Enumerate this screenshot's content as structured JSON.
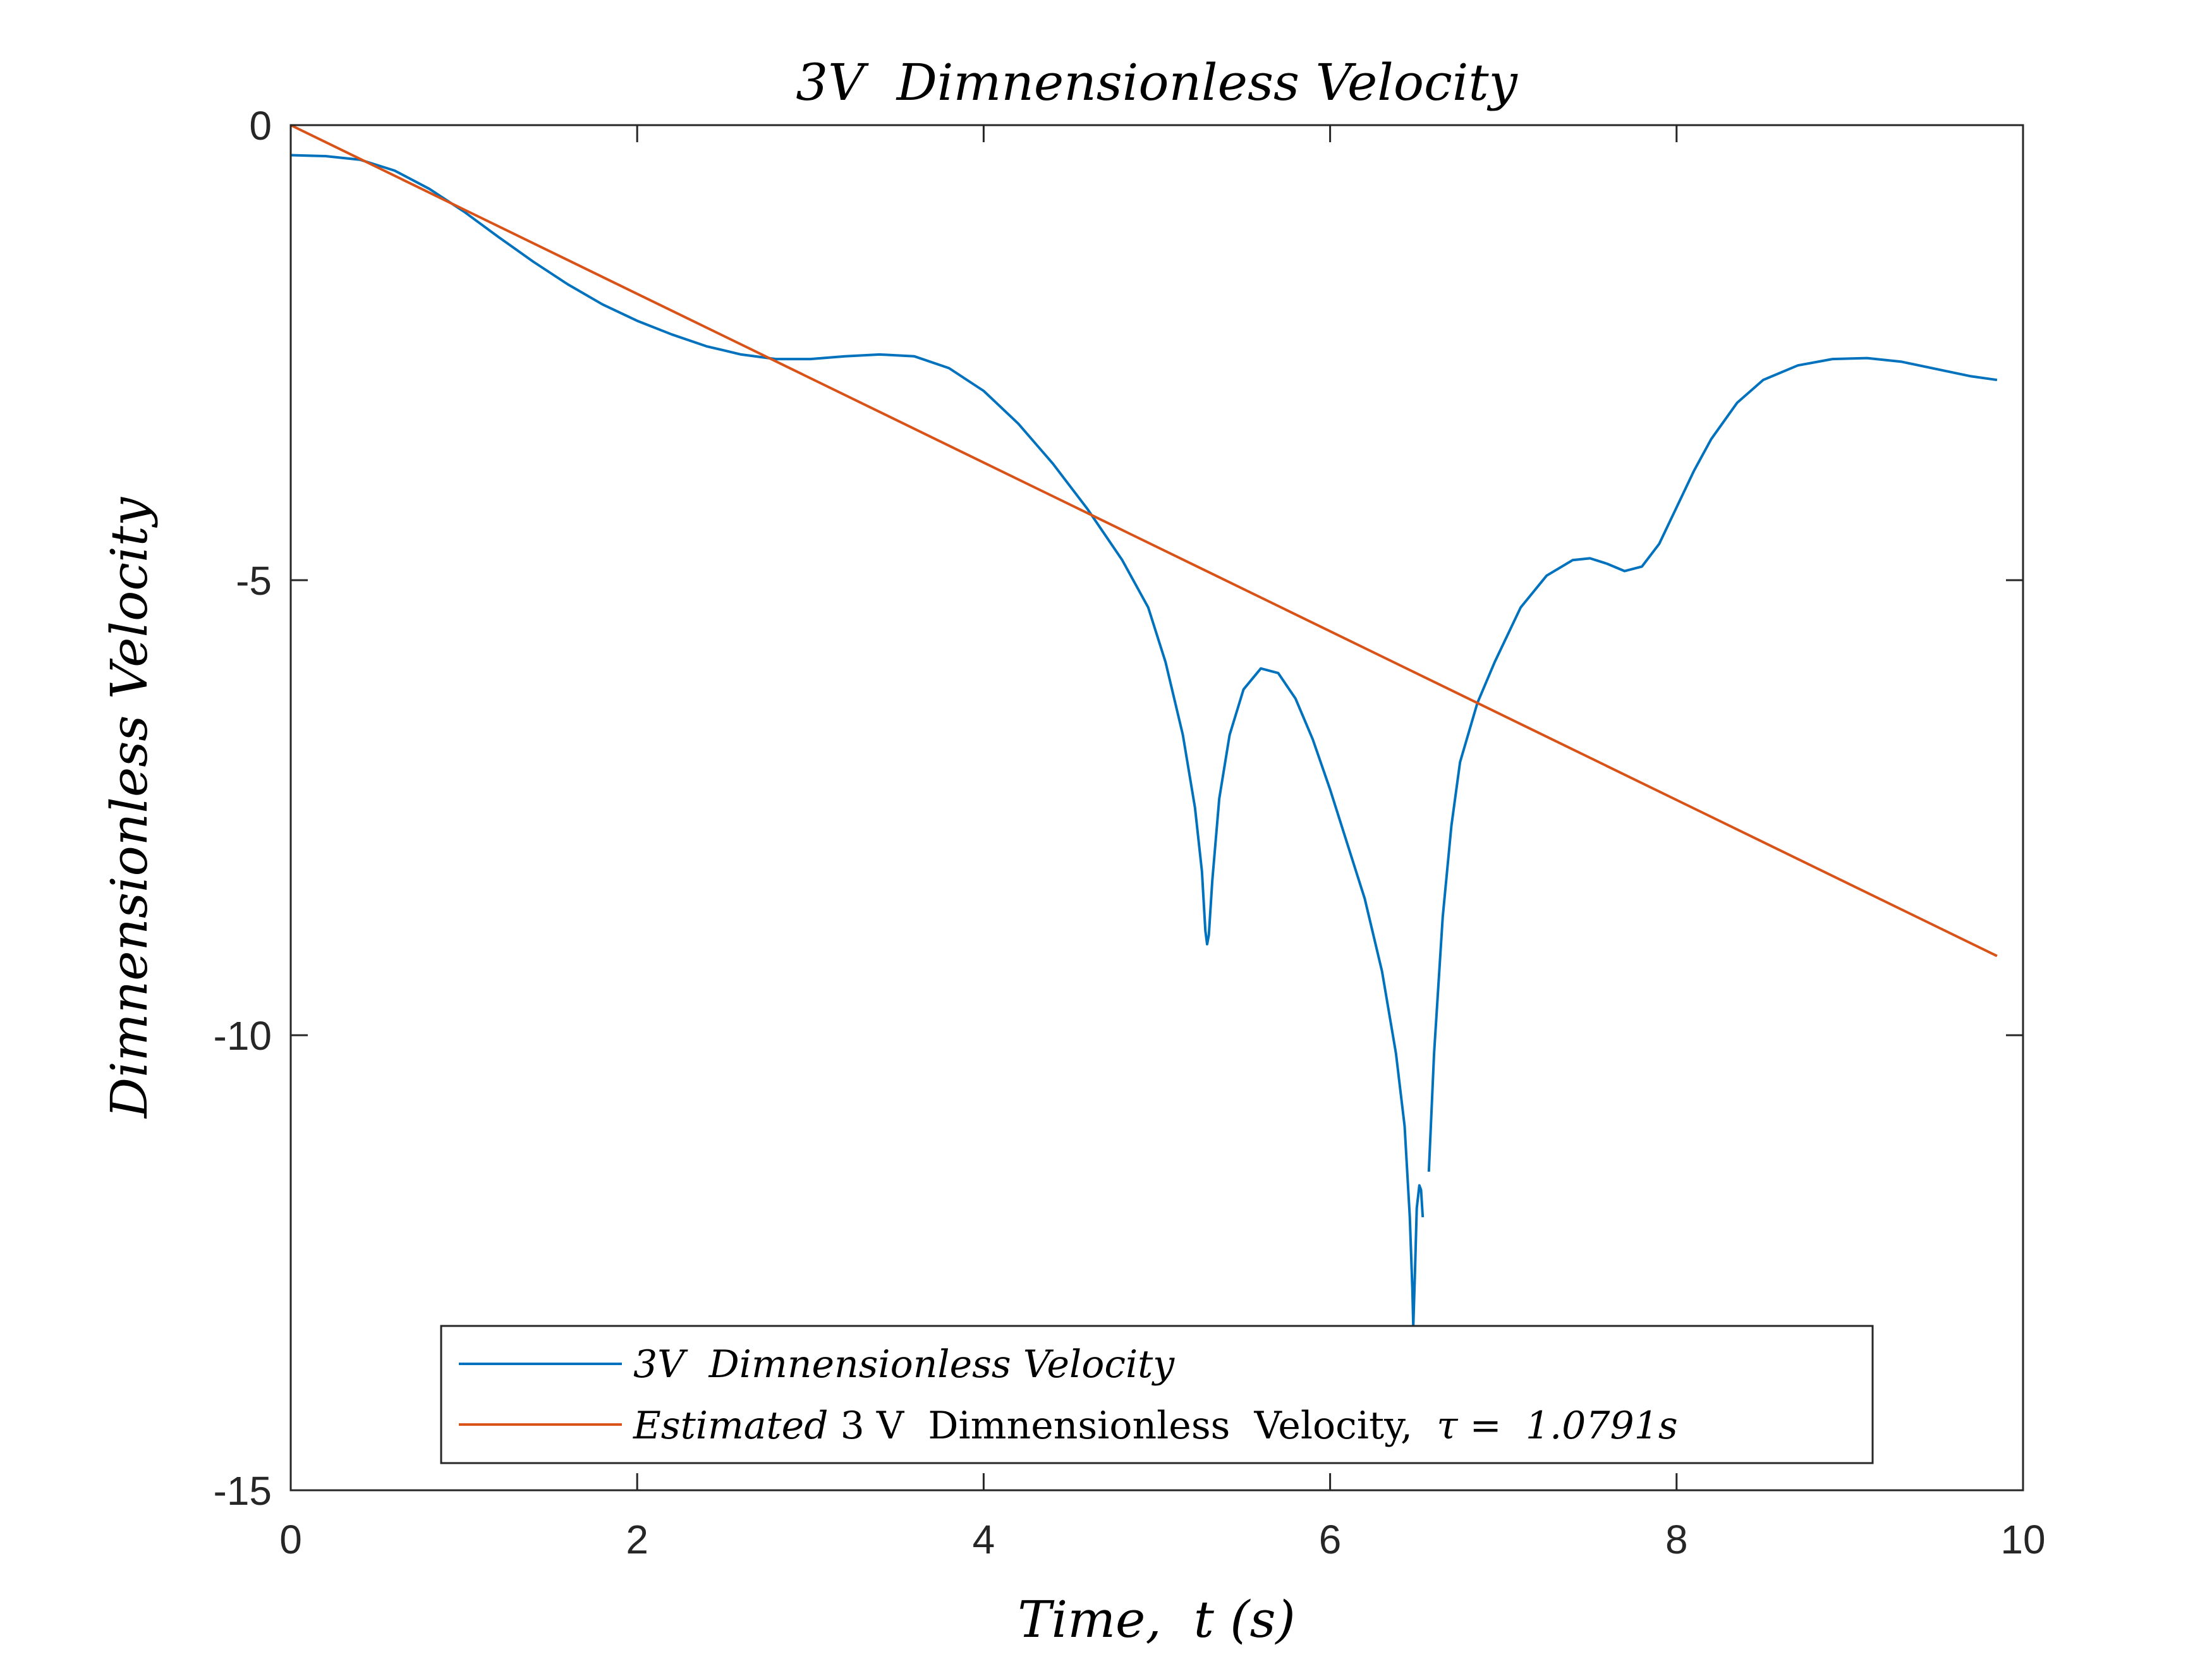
{
  "chart_data": {
    "type": "line",
    "title": "3V  Dimnensionless Velocity",
    "xlabel": "Time,  t (s)",
    "ylabel": "Dimnensionless Velocity",
    "xlim": [
      0,
      10
    ],
    "ylim": [
      -15,
      0
    ],
    "xticks": [
      "0",
      "2",
      "4",
      "6",
      "8",
      "10"
    ],
    "yticks": [
      "0",
      "-5",
      "-10",
      "-15"
    ],
    "grid": false,
    "legend_position": "bottom-center",
    "legend": {
      "entry1": "3V  Dimnensionless Velocity",
      "entry2_italic": "Estimated",
      "entry2_text": " 3 V  Dimnensionless  Velocity,  ",
      "entry2_tau": "τ =  1.0791",
      "entry2_unit": "s"
    },
    "series": [
      {
        "name": "3V  Dimnensionless Velocity",
        "color": "#0072BD",
        "segments": [
          [
            [
              0,
              -0.33
            ],
            [
              0.2,
              -0.34
            ],
            [
              0.4,
              -0.38
            ],
            [
              0.6,
              -0.5
            ],
            [
              0.8,
              -0.7
            ],
            [
              1.0,
              -0.95
            ],
            [
              1.2,
              -1.23
            ],
            [
              1.4,
              -1.5
            ],
            [
              1.6,
              -1.75
            ],
            [
              1.8,
              -1.97
            ],
            [
              2.0,
              -2.15
            ],
            [
              2.2,
              -2.3
            ],
            [
              2.4,
              -2.43
            ],
            [
              2.6,
              -2.52
            ],
            [
              2.8,
              -2.57
            ],
            [
              3.0,
              -2.57
            ],
            [
              3.2,
              -2.54
            ],
            [
              3.4,
              -2.52
            ],
            [
              3.6,
              -2.54
            ],
            [
              3.8,
              -2.67
            ],
            [
              4.0,
              -2.92
            ],
            [
              4.2,
              -3.28
            ],
            [
              4.4,
              -3.72
            ],
            [
              4.6,
              -4.22
            ],
            [
              4.8,
              -4.78
            ],
            [
              4.95,
              -5.3
            ],
            [
              5.05,
              -5.9
            ],
            [
              5.15,
              -6.7
            ],
            [
              5.22,
              -7.5
            ],
            [
              5.26,
              -8.2
            ],
            [
              5.28,
              -8.85
            ],
            [
              5.29,
              -9.0
            ],
            [
              5.3,
              -8.9
            ],
            [
              5.32,
              -8.3
            ],
            [
              5.36,
              -7.4
            ],
            [
              5.42,
              -6.7
            ],
            [
              5.5,
              -6.2
            ],
            [
              5.6,
              -5.97
            ],
            [
              5.7,
              -6.02
            ],
            [
              5.8,
              -6.3
            ],
            [
              5.9,
              -6.75
            ],
            [
              6.0,
              -7.3
            ],
            [
              6.1,
              -7.9
            ],
            [
              6.2,
              -8.5
            ],
            [
              6.3,
              -9.3
            ],
            [
              6.38,
              -10.2
            ],
            [
              6.43,
              -11.0
            ],
            [
              6.46,
              -12.0
            ],
            [
              6.475,
              -12.8
            ],
            [
              6.48,
              -13.2
            ],
            [
              6.49,
              -12.6
            ],
            [
              6.5,
              -11.9
            ],
            [
              6.515,
              -11.65
            ],
            [
              6.525,
              -11.7
            ],
            [
              6.535,
              -12.0
            ]
          ],
          [
            [
              6.57,
              -11.5
            ],
            [
              6.6,
              -10.2
            ],
            [
              6.65,
              -8.7
            ],
            [
              6.7,
              -7.7
            ],
            [
              6.75,
              -7.0
            ],
            [
              6.85,
              -6.35
            ],
            [
              6.95,
              -5.9
            ],
            [
              7.1,
              -5.3
            ],
            [
              7.25,
              -4.95
            ],
            [
              7.4,
              -4.78
            ],
            [
              7.5,
              -4.76
            ],
            [
              7.6,
              -4.82
            ],
            [
              7.7,
              -4.9
            ],
            [
              7.8,
              -4.85
            ],
            [
              7.9,
              -4.6
            ],
            [
              8.0,
              -4.2
            ],
            [
              8.1,
              -3.8
            ],
            [
              8.2,
              -3.45
            ],
            [
              8.35,
              -3.05
            ],
            [
              8.5,
              -2.8
            ],
            [
              8.7,
              -2.64
            ],
            [
              8.9,
              -2.57
            ],
            [
              9.1,
              -2.56
            ],
            [
              9.3,
              -2.6
            ],
            [
              9.5,
              -2.68
            ],
            [
              9.7,
              -2.76
            ],
            [
              9.85,
              -2.8
            ]
          ]
        ]
      },
      {
        "name": "Estimated 3 V  Dimnensionless  Velocity,  τ =  1.0791s",
        "color": "#D95319",
        "points": [
          [
            0,
            0
          ],
          [
            9.85,
            -9.13
          ]
        ]
      }
    ]
  }
}
